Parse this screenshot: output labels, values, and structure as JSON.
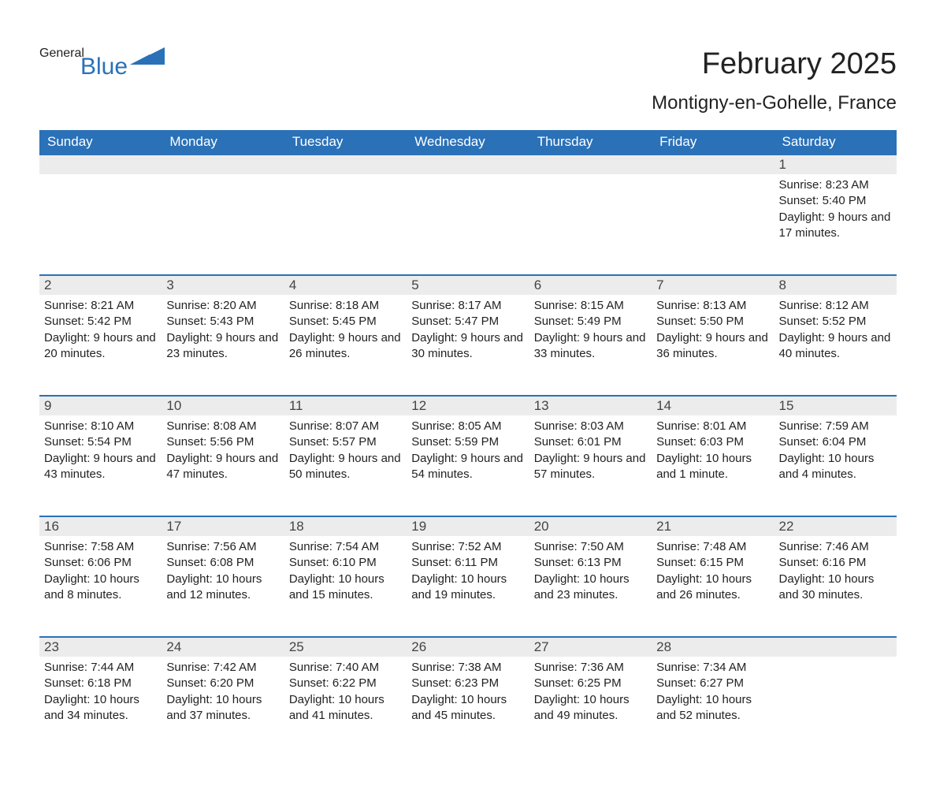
{
  "logo": {
    "general": "General",
    "blue": "Blue",
    "triangle_color": "#2a71b8"
  },
  "title": "February 2025",
  "location": "Montigny-en-Gohelle, France",
  "colors": {
    "header_bg": "#2a71b8",
    "header_text": "#ffffff",
    "daynum_bg": "#ececec",
    "daynum_border": "#2a71b8",
    "text": "#222222"
  },
  "dayNames": [
    "Sunday",
    "Monday",
    "Tuesday",
    "Wednesday",
    "Thursday",
    "Friday",
    "Saturday"
  ],
  "firstDayColumn": 6,
  "days": [
    {
      "n": 1,
      "sunrise": "8:23 AM",
      "sunset": "5:40 PM",
      "daylight": "9 hours and 17 minutes."
    },
    {
      "n": 2,
      "sunrise": "8:21 AM",
      "sunset": "5:42 PM",
      "daylight": "9 hours and 20 minutes."
    },
    {
      "n": 3,
      "sunrise": "8:20 AM",
      "sunset": "5:43 PM",
      "daylight": "9 hours and 23 minutes."
    },
    {
      "n": 4,
      "sunrise": "8:18 AM",
      "sunset": "5:45 PM",
      "daylight": "9 hours and 26 minutes."
    },
    {
      "n": 5,
      "sunrise": "8:17 AM",
      "sunset": "5:47 PM",
      "daylight": "9 hours and 30 minutes."
    },
    {
      "n": 6,
      "sunrise": "8:15 AM",
      "sunset": "5:49 PM",
      "daylight": "9 hours and 33 minutes."
    },
    {
      "n": 7,
      "sunrise": "8:13 AM",
      "sunset": "5:50 PM",
      "daylight": "9 hours and 36 minutes."
    },
    {
      "n": 8,
      "sunrise": "8:12 AM",
      "sunset": "5:52 PM",
      "daylight": "9 hours and 40 minutes."
    },
    {
      "n": 9,
      "sunrise": "8:10 AM",
      "sunset": "5:54 PM",
      "daylight": "9 hours and 43 minutes."
    },
    {
      "n": 10,
      "sunrise": "8:08 AM",
      "sunset": "5:56 PM",
      "daylight": "9 hours and 47 minutes."
    },
    {
      "n": 11,
      "sunrise": "8:07 AM",
      "sunset": "5:57 PM",
      "daylight": "9 hours and 50 minutes."
    },
    {
      "n": 12,
      "sunrise": "8:05 AM",
      "sunset": "5:59 PM",
      "daylight": "9 hours and 54 minutes."
    },
    {
      "n": 13,
      "sunrise": "8:03 AM",
      "sunset": "6:01 PM",
      "daylight": "9 hours and 57 minutes."
    },
    {
      "n": 14,
      "sunrise": "8:01 AM",
      "sunset": "6:03 PM",
      "daylight": "10 hours and 1 minute."
    },
    {
      "n": 15,
      "sunrise": "7:59 AM",
      "sunset": "6:04 PM",
      "daylight": "10 hours and 4 minutes."
    },
    {
      "n": 16,
      "sunrise": "7:58 AM",
      "sunset": "6:06 PM",
      "daylight": "10 hours and 8 minutes."
    },
    {
      "n": 17,
      "sunrise": "7:56 AM",
      "sunset": "6:08 PM",
      "daylight": "10 hours and 12 minutes."
    },
    {
      "n": 18,
      "sunrise": "7:54 AM",
      "sunset": "6:10 PM",
      "daylight": "10 hours and 15 minutes."
    },
    {
      "n": 19,
      "sunrise": "7:52 AM",
      "sunset": "6:11 PM",
      "daylight": "10 hours and 19 minutes."
    },
    {
      "n": 20,
      "sunrise": "7:50 AM",
      "sunset": "6:13 PM",
      "daylight": "10 hours and 23 minutes."
    },
    {
      "n": 21,
      "sunrise": "7:48 AM",
      "sunset": "6:15 PM",
      "daylight": "10 hours and 26 minutes."
    },
    {
      "n": 22,
      "sunrise": "7:46 AM",
      "sunset": "6:16 PM",
      "daylight": "10 hours and 30 minutes."
    },
    {
      "n": 23,
      "sunrise": "7:44 AM",
      "sunset": "6:18 PM",
      "daylight": "10 hours and 34 minutes."
    },
    {
      "n": 24,
      "sunrise": "7:42 AM",
      "sunset": "6:20 PM",
      "daylight": "10 hours and 37 minutes."
    },
    {
      "n": 25,
      "sunrise": "7:40 AM",
      "sunset": "6:22 PM",
      "daylight": "10 hours and 41 minutes."
    },
    {
      "n": 26,
      "sunrise": "7:38 AM",
      "sunset": "6:23 PM",
      "daylight": "10 hours and 45 minutes."
    },
    {
      "n": 27,
      "sunrise": "7:36 AM",
      "sunset": "6:25 PM",
      "daylight": "10 hours and 49 minutes."
    },
    {
      "n": 28,
      "sunrise": "7:34 AM",
      "sunset": "6:27 PM",
      "daylight": "10 hours and 52 minutes."
    }
  ],
  "labels": {
    "sunrise": "Sunrise:",
    "sunset": "Sunset:",
    "daylight": "Daylight:"
  }
}
